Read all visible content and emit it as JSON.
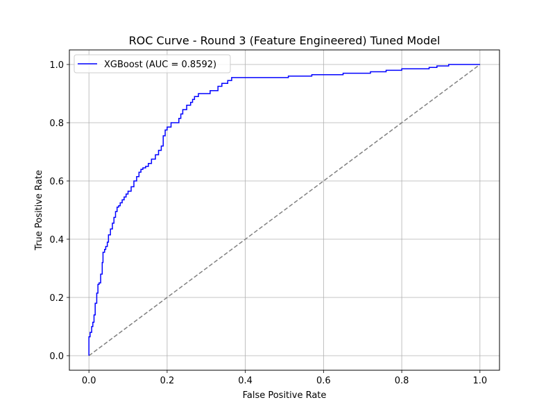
{
  "chart_data": {
    "type": "line",
    "title": "ROC Curve - Round 3 (Feature Engineered) Tuned Model",
    "xlabel": "False Positive Rate",
    "ylabel": "True Positive Rate",
    "xlim": [
      -0.05,
      1.05
    ],
    "ylim": [
      -0.05,
      1.05
    ],
    "xticks": [
      0.0,
      0.2,
      0.4,
      0.6,
      0.8,
      1.0
    ],
    "yticks": [
      0.0,
      0.2,
      0.4,
      0.6,
      0.8,
      1.0
    ],
    "xtick_labels": [
      "0.0",
      "0.2",
      "0.4",
      "0.6",
      "0.8",
      "1.0"
    ],
    "ytick_labels": [
      "0.0",
      "0.2",
      "0.4",
      "0.6",
      "0.8",
      "1.0"
    ],
    "grid": true,
    "legend_position": "top-left",
    "series": [
      {
        "name": "XGBoost (AUC = 0.8592)",
        "color": "#0000ff",
        "style": "solid",
        "x": [
          0.0,
          0.0,
          0.003,
          0.003,
          0.007,
          0.007,
          0.01,
          0.01,
          0.013,
          0.013,
          0.016,
          0.016,
          0.02,
          0.02,
          0.023,
          0.023,
          0.026,
          0.026,
          0.03,
          0.03,
          0.034,
          0.034,
          0.036,
          0.036,
          0.04,
          0.04,
          0.043,
          0.043,
          0.047,
          0.047,
          0.05,
          0.05,
          0.055,
          0.055,
          0.06,
          0.06,
          0.064,
          0.064,
          0.068,
          0.068,
          0.072,
          0.072,
          0.076,
          0.076,
          0.08,
          0.08,
          0.085,
          0.085,
          0.09,
          0.09,
          0.095,
          0.095,
          0.1,
          0.1,
          0.108,
          0.108,
          0.115,
          0.115,
          0.122,
          0.122,
          0.128,
          0.128,
          0.133,
          0.133,
          0.138,
          0.138,
          0.145,
          0.145,
          0.152,
          0.152,
          0.16,
          0.16,
          0.17,
          0.17,
          0.178,
          0.178,
          0.185,
          0.185,
          0.19,
          0.19,
          0.195,
          0.195,
          0.2,
          0.2,
          0.21,
          0.21,
          0.23,
          0.23,
          0.235,
          0.235,
          0.24,
          0.24,
          0.25,
          0.25,
          0.26,
          0.26,
          0.265,
          0.265,
          0.27,
          0.27,
          0.28,
          0.28,
          0.31,
          0.31,
          0.33,
          0.33,
          0.34,
          0.34,
          0.355,
          0.355,
          0.365,
          0.365,
          0.51,
          0.51,
          0.57,
          0.57,
          0.65,
          0.65,
          0.72,
          0.72,
          0.76,
          0.76,
          0.8,
          0.8,
          0.87,
          0.87,
          0.89,
          0.89,
          0.92,
          0.92,
          1.0
        ],
        "y": [
          0.0,
          0.065,
          0.065,
          0.08,
          0.08,
          0.1,
          0.1,
          0.115,
          0.115,
          0.14,
          0.14,
          0.18,
          0.18,
          0.215,
          0.215,
          0.245,
          0.245,
          0.25,
          0.25,
          0.28,
          0.28,
          0.32,
          0.32,
          0.355,
          0.355,
          0.365,
          0.365,
          0.375,
          0.375,
          0.39,
          0.39,
          0.415,
          0.415,
          0.435,
          0.435,
          0.455,
          0.455,
          0.475,
          0.475,
          0.495,
          0.495,
          0.51,
          0.51,
          0.515,
          0.515,
          0.525,
          0.525,
          0.535,
          0.535,
          0.545,
          0.545,
          0.555,
          0.555,
          0.565,
          0.565,
          0.58,
          0.58,
          0.6,
          0.6,
          0.615,
          0.615,
          0.63,
          0.63,
          0.64,
          0.64,
          0.645,
          0.645,
          0.65,
          0.65,
          0.66,
          0.66,
          0.675,
          0.675,
          0.69,
          0.69,
          0.705,
          0.705,
          0.72,
          0.72,
          0.755,
          0.755,
          0.775,
          0.775,
          0.785,
          0.785,
          0.8,
          0.8,
          0.815,
          0.815,
          0.83,
          0.83,
          0.845,
          0.845,
          0.86,
          0.86,
          0.87,
          0.87,
          0.88,
          0.88,
          0.89,
          0.89,
          0.9,
          0.9,
          0.91,
          0.91,
          0.925,
          0.925,
          0.935,
          0.935,
          0.945,
          0.945,
          0.955,
          0.955,
          0.96,
          0.96,
          0.965,
          0.965,
          0.97,
          0.97,
          0.975,
          0.975,
          0.98,
          0.98,
          0.985,
          0.985,
          0.99,
          0.99,
          0.995,
          0.995,
          1.0,
          1.0
        ]
      },
      {
        "color": "#808080",
        "style": "dashed",
        "x": [
          0.0,
          1.0
        ],
        "y": [
          0.0,
          1.0
        ]
      }
    ]
  }
}
